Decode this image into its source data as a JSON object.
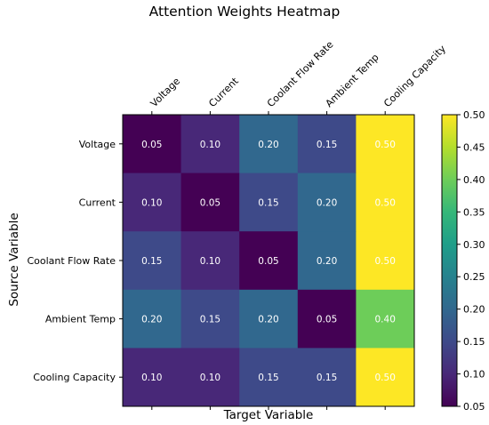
{
  "chart_data": {
    "type": "heatmap",
    "title": "Attention Weights Heatmap",
    "xlabel": "Target Variable",
    "ylabel": "Source Variable",
    "x_categories": [
      "Voltage",
      "Current",
      "Coolant Flow Rate",
      "Ambient Temp",
      "Cooling Capacity"
    ],
    "y_categories": [
      "Voltage",
      "Current",
      "Coolant Flow Rate",
      "Ambient Temp",
      "Cooling Capacity"
    ],
    "values": [
      [
        0.05,
        0.1,
        0.2,
        0.15,
        0.5
      ],
      [
        0.1,
        0.05,
        0.15,
        0.2,
        0.5
      ],
      [
        0.15,
        0.1,
        0.05,
        0.2,
        0.5
      ],
      [
        0.2,
        0.15,
        0.2,
        0.05,
        0.4
      ],
      [
        0.1,
        0.1,
        0.15,
        0.15,
        0.5
      ]
    ],
    "value_labels": [
      [
        "0.05",
        "0.10",
        "0.20",
        "0.15",
        "0.50"
      ],
      [
        "0.10",
        "0.05",
        "0.15",
        "0.20",
        "0.50"
      ],
      [
        "0.15",
        "0.10",
        "0.05",
        "0.20",
        "0.50"
      ],
      [
        "0.20",
        "0.15",
        "0.20",
        "0.05",
        "0.40"
      ],
      [
        "0.10",
        "0.10",
        "0.15",
        "0.15",
        "0.50"
      ]
    ],
    "colormap": "viridis",
    "vmin": 0.05,
    "vmax": 0.5,
    "x_tick_position": "top",
    "colorbar": {
      "position": "right",
      "ticks": [
        0.05,
        0.1,
        0.15,
        0.2,
        0.25,
        0.3,
        0.35,
        0.4,
        0.45,
        0.5
      ],
      "tick_labels": [
        "0.05",
        "0.10",
        "0.15",
        "0.20",
        "0.25",
        "0.30",
        "0.35",
        "0.40",
        "0.45",
        "0.50"
      ]
    },
    "annotation_color": "#ffffff"
  }
}
